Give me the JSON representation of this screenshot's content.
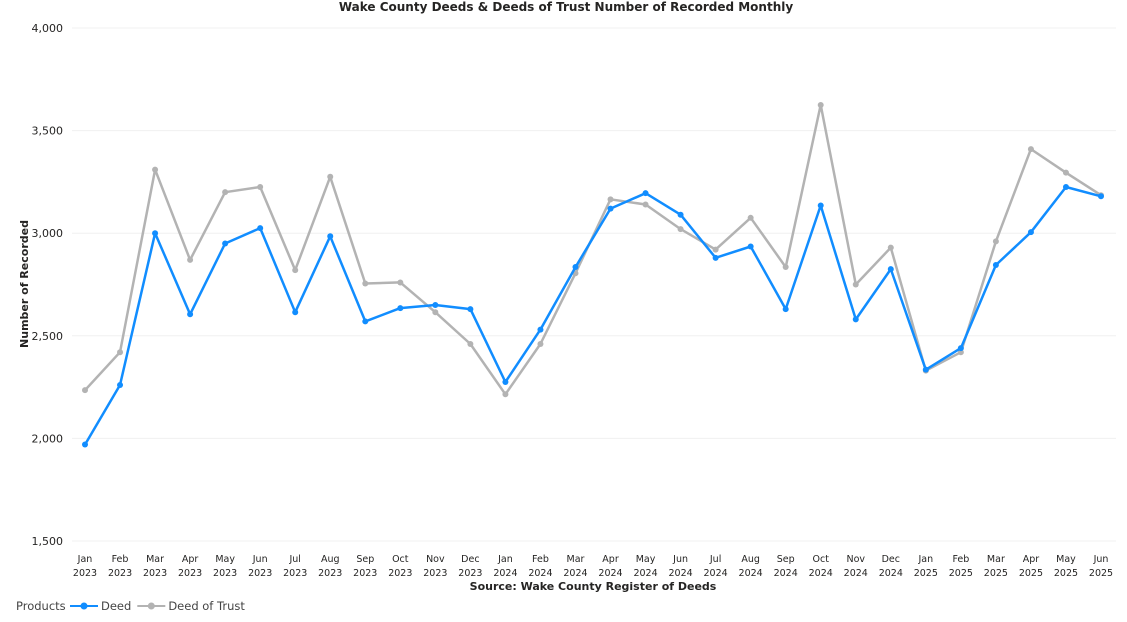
{
  "chart_data": {
    "type": "line",
    "title": "Wake County Deeds & Deeds of Trust Number of Recorded Monthly",
    "xlabel": "Source: Wake County Register of Deeds",
    "ylabel": "Number of Recorded",
    "ylim": [
      1500,
      4000
    ],
    "yticks": [
      1500,
      2000,
      2500,
      3000,
      3500,
      4000
    ],
    "ytick_labels": [
      "1,500",
      "2,000",
      "2,500",
      "3,000",
      "3,500",
      "4,000"
    ],
    "grid": true,
    "legend_title": "Products",
    "legend_position": "bottom-left",
    "categories": [
      {
        "month": "Jan",
        "year": "2023"
      },
      {
        "month": "Feb",
        "year": "2023"
      },
      {
        "month": "Mar",
        "year": "2023"
      },
      {
        "month": "Apr",
        "year": "2023"
      },
      {
        "month": "May",
        "year": "2023"
      },
      {
        "month": "Jun",
        "year": "2023"
      },
      {
        "month": "Jul",
        "year": "2023"
      },
      {
        "month": "Aug",
        "year": "2023"
      },
      {
        "month": "Sep",
        "year": "2023"
      },
      {
        "month": "Oct",
        "year": "2023"
      },
      {
        "month": "Nov",
        "year": "2023"
      },
      {
        "month": "Dec",
        "year": "2023"
      },
      {
        "month": "Jan",
        "year": "2024"
      },
      {
        "month": "Feb",
        "year": "2024"
      },
      {
        "month": "Mar",
        "year": "2024"
      },
      {
        "month": "Apr",
        "year": "2024"
      },
      {
        "month": "May",
        "year": "2024"
      },
      {
        "month": "Jun",
        "year": "2024"
      },
      {
        "month": "Jul",
        "year": "2024"
      },
      {
        "month": "Aug",
        "year": "2024"
      },
      {
        "month": "Sep",
        "year": "2024"
      },
      {
        "month": "Oct",
        "year": "2024"
      },
      {
        "month": "Nov",
        "year": "2024"
      },
      {
        "month": "Dec",
        "year": "2024"
      },
      {
        "month": "Jan",
        "year": "2025"
      },
      {
        "month": "Feb",
        "year": "2025"
      },
      {
        "month": "Mar",
        "year": "2025"
      },
      {
        "month": "Apr",
        "year": "2025"
      },
      {
        "month": "May",
        "year": "2025"
      },
      {
        "month": "Jun",
        "year": "2025"
      }
    ],
    "series": [
      {
        "name": "Deed",
        "color": "#118DFF",
        "values": [
          1970,
          2260,
          3000,
          2605,
          2950,
          3025,
          2615,
          2985,
          2570,
          2635,
          2650,
          2630,
          2275,
          2530,
          2835,
          3120,
          3195,
          3090,
          2880,
          2935,
          2630,
          3135,
          2580,
          2825,
          2335,
          2440,
          2845,
          3005,
          3225,
          3180
        ]
      },
      {
        "name": "Deed of Trust",
        "color": "#B3B3B3",
        "values": [
          2235,
          2420,
          3310,
          2870,
          3200,
          3225,
          2820,
          3275,
          2755,
          2760,
          2615,
          2460,
          2215,
          2460,
          2805,
          3165,
          3140,
          3020,
          2920,
          3075,
          2835,
          3625,
          2750,
          2930,
          2330,
          2420,
          2960,
          3410,
          3295,
          3185
        ]
      }
    ]
  }
}
